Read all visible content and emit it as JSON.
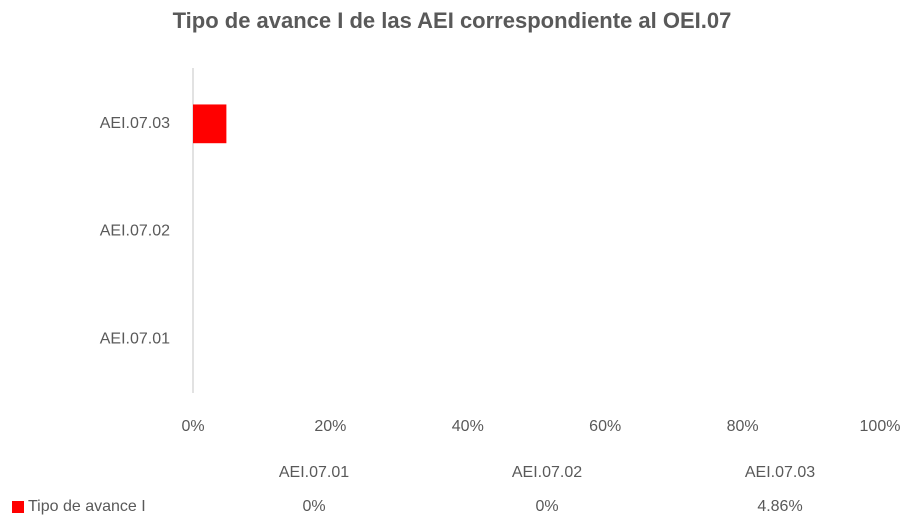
{
  "chart_data": {
    "type": "hbar",
    "title": "Tipo de avance I de las AEI correspondiente al OEI.07",
    "categories": [
      "AEI.07.01",
      "AEI.07.02",
      "AEI.07.03"
    ],
    "series": [
      {
        "name": "Tipo de avance I",
        "color": "#ff0000",
        "values": [
          0,
          0,
          4.86
        ],
        "value_labels": [
          "0%",
          "0%",
          "4.86%"
        ]
      }
    ],
    "xlim": [
      0,
      100
    ],
    "xticks": [
      {
        "value": 0,
        "label": "0%"
      },
      {
        "value": 20,
        "label": "20%"
      },
      {
        "value": 40,
        "label": "40%"
      },
      {
        "value": 60,
        "label": "60%"
      },
      {
        "value": 80,
        "label": "80%"
      },
      {
        "value": 100,
        "label": "100%"
      }
    ],
    "grid": false,
    "data_table": true
  }
}
